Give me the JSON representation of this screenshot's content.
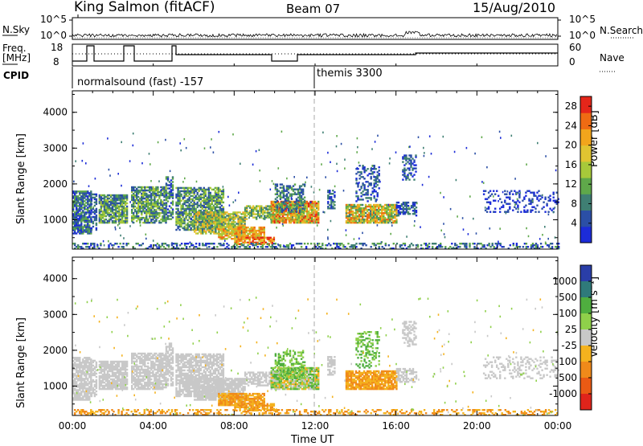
{
  "header": {
    "station": "King Salmon (fitACF)",
    "beam": "Beam 07",
    "date": "15/Aug/2010"
  },
  "top_strip": {
    "left_label": "N.Sky",
    "right_label": "N.Search",
    "left_ticks": [
      "10^5",
      "10^0"
    ],
    "right_ticks": [
      "10^5",
      "10^0"
    ]
  },
  "freq_strip": {
    "left_label_1": "Freq.",
    "left_label_2": "[MHz]",
    "right_label": "Nave",
    "left_ticks": [
      "18",
      "8"
    ],
    "right_ticks": [
      "60",
      "0"
    ]
  },
  "cpid": {
    "label": "CPID",
    "modes": [
      {
        "name": "normalsound (fast) -157",
        "start_hour": 0
      },
      {
        "name": "themis 3300",
        "start_hour": 12
      }
    ]
  },
  "colors": {
    "power": [
      "#1c2cd8",
      "#2b4fa6",
      "#3f7f73",
      "#5fa84a",
      "#a7c93a",
      "#e0c431",
      "#f2a51c",
      "#ef6b13",
      "#e5261a"
    ],
    "velocity": [
      "#2a3ea8",
      "#2f7a7a",
      "#4fae3f",
      "#8fd04a",
      "#c8c8c8",
      "#f4b21e",
      "#f08a1a",
      "#ea5a14",
      "#e0241b"
    ]
  },
  "chart_data": [
    {
      "type": "heatmap",
      "title": "Power",
      "xlabel": "Time UT",
      "ylabel": "Slant Range [km]",
      "colorbar_label": "Power [dB]",
      "x_ticks": [
        "00:00",
        "04:00",
        "08:00",
        "12:00",
        "16:00",
        "20:00",
        "00:00"
      ],
      "xlim": [
        0,
        24
      ],
      "y_ticks": [
        1000,
        2000,
        3000,
        4000
      ],
      "ylim": [
        180,
        4600
      ],
      "colorbar_ticks": [
        4,
        8,
        12,
        16,
        20,
        24,
        28
      ],
      "zlim": [
        0,
        30
      ]
    },
    {
      "type": "heatmap",
      "title": "Velocity",
      "xlabel": "Time UT",
      "ylabel": "Slant Range [km]",
      "colorbar_label": "Velocity [m s⁻¹]",
      "x_ticks": [
        "00:00",
        "04:00",
        "08:00",
        "12:00",
        "16:00",
        "20:00",
        "00:00"
      ],
      "xlim": [
        0,
        24
      ],
      "y_ticks": [
        1000,
        2000,
        3000,
        4000
      ],
      "ylim": [
        180,
        4600
      ],
      "colorbar_ticks": [
        "1000",
        "500",
        "100",
        "25",
        "-25",
        "-100",
        "-500",
        "-1000"
      ]
    }
  ]
}
